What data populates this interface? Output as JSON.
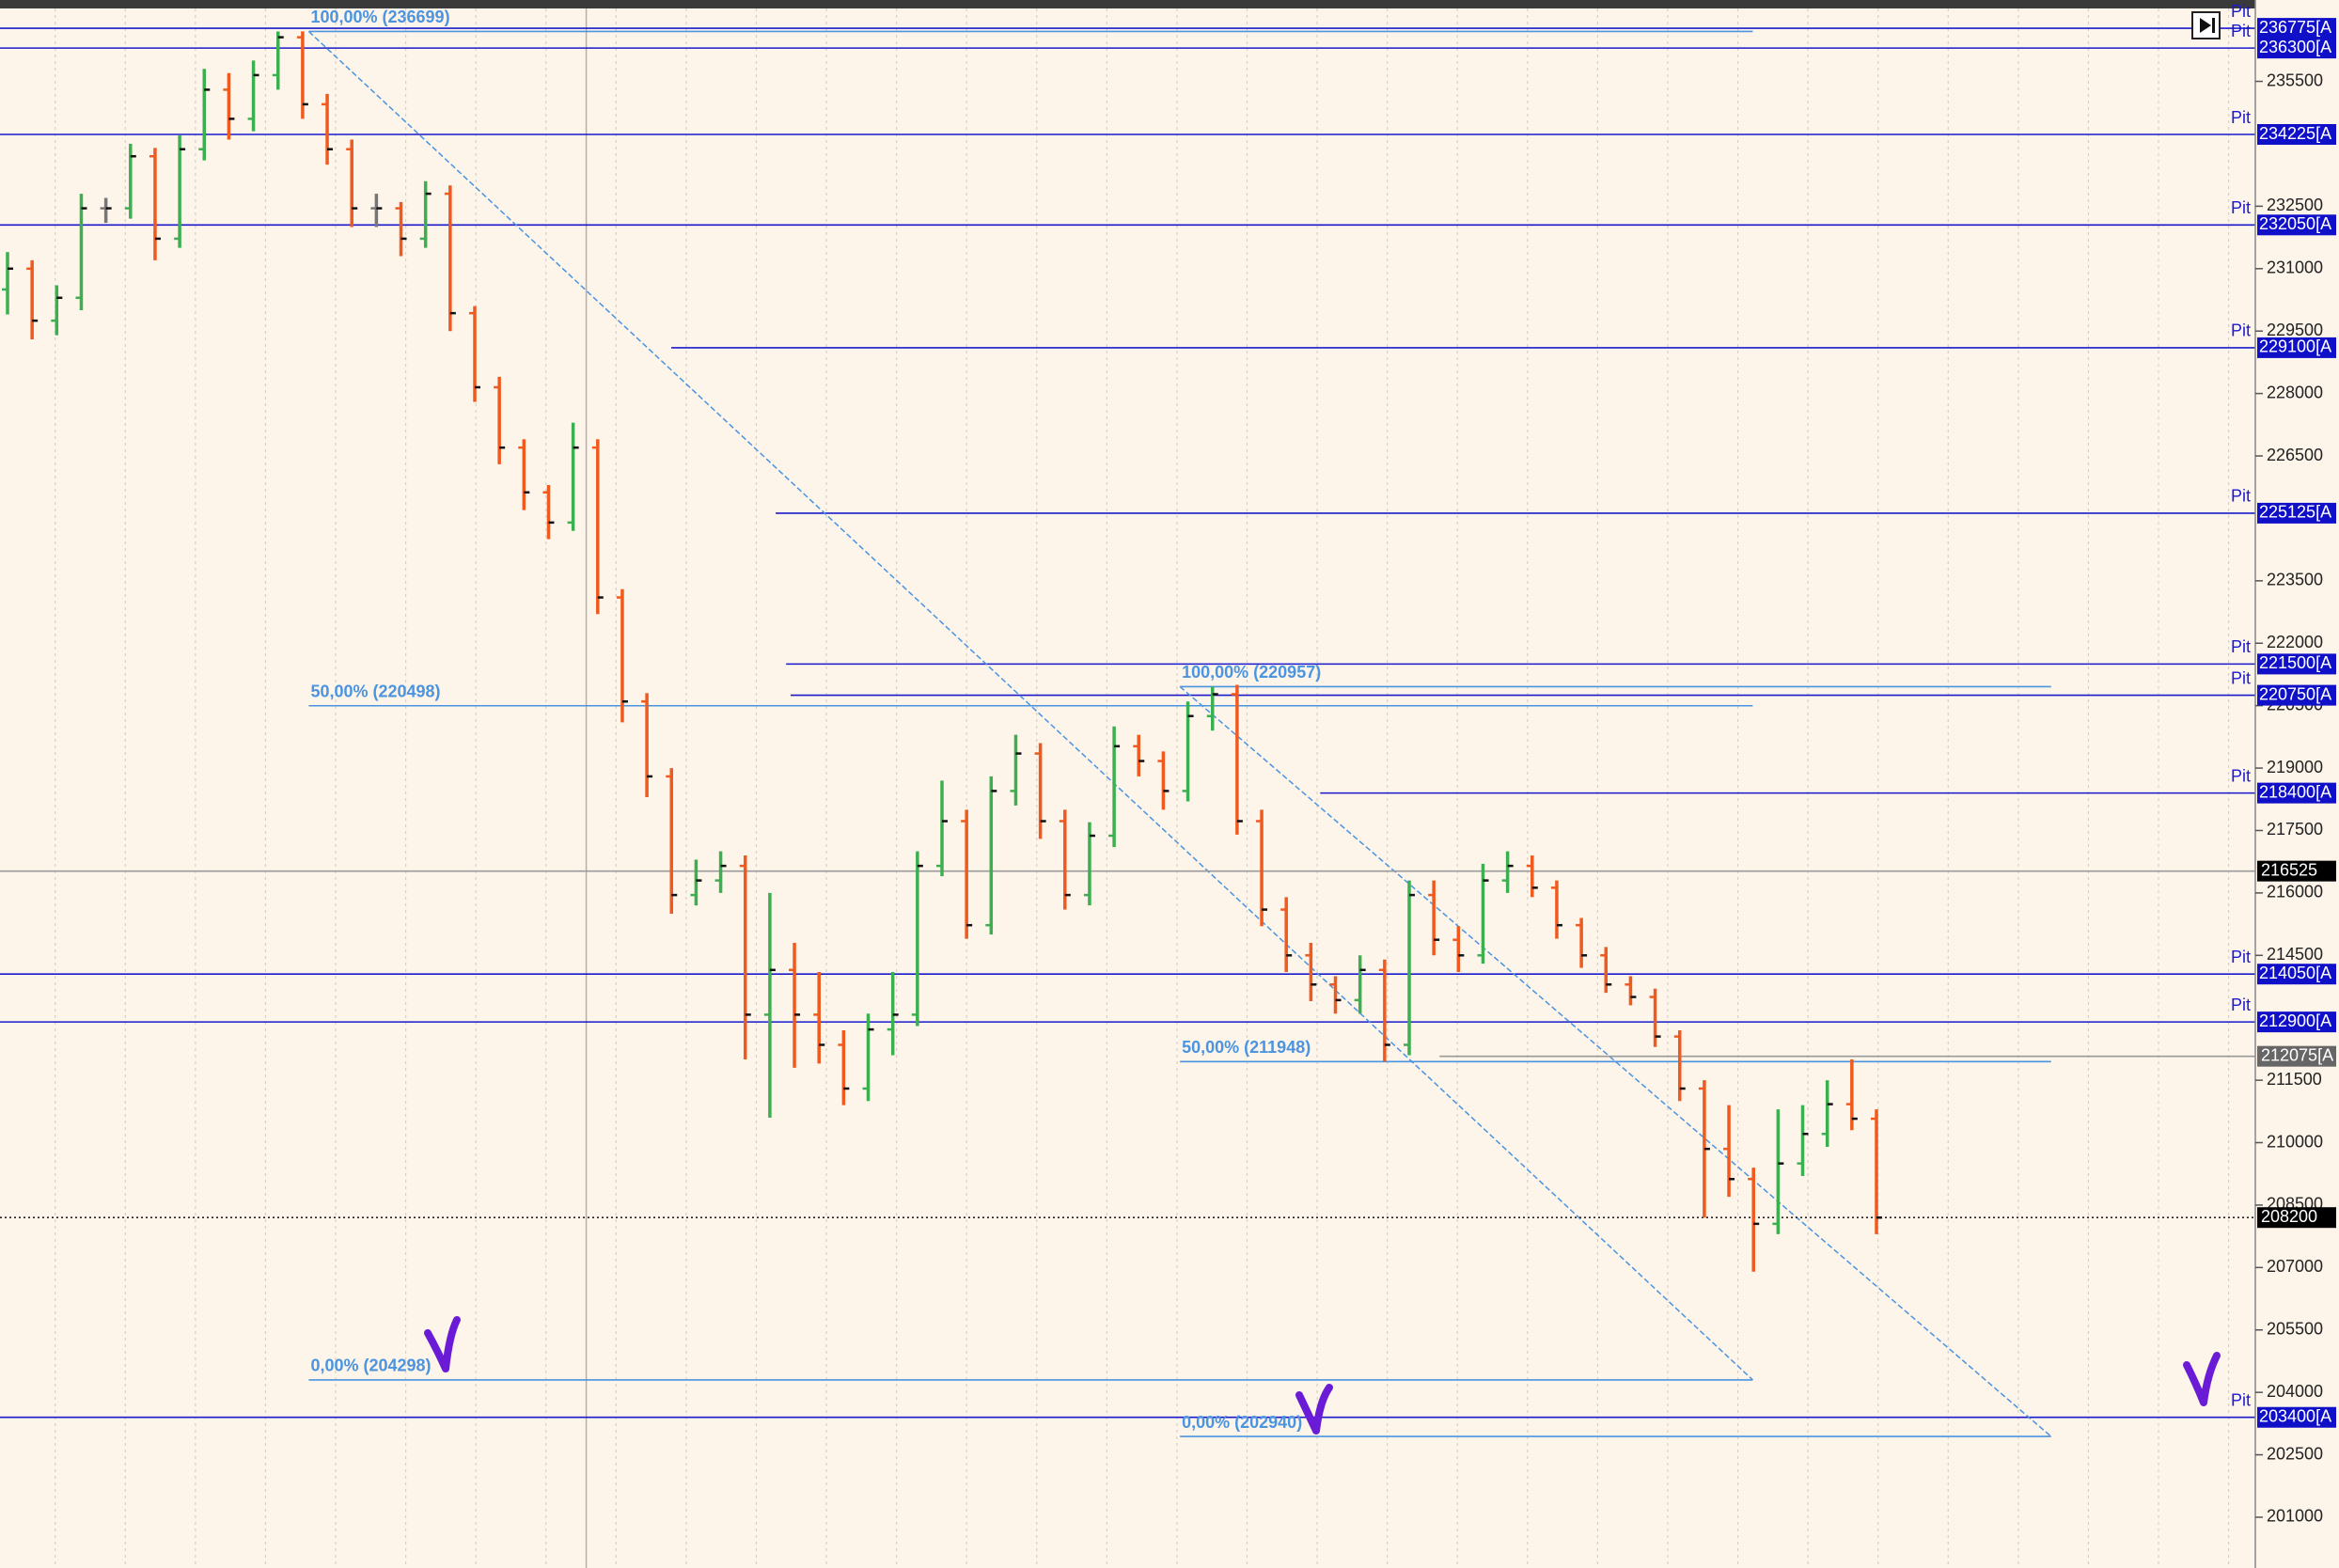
{
  "chart_data": {
    "type": "ohlc",
    "ylim": [
      199780,
      237455
    ],
    "yticks": [
      201000,
      202500,
      204000,
      205500,
      207000,
      208500,
      210000,
      211500,
      214500,
      216000,
      217500,
      219000,
      220500,
      222000,
      223500,
      226500,
      228000,
      229500,
      231000,
      232500,
      235500
    ],
    "up_color": "#3cb050",
    "down_color": "#f05a1e",
    "ohlc": [
      [
        230500,
        231400,
        229900,
        231000
      ],
      [
        231000,
        231200,
        229300,
        229750
      ],
      [
        229750,
        230600,
        229400,
        230300
      ],
      [
        230300,
        232800,
        230000,
        232450
      ],
      [
        232450,
        232700,
        232100,
        232450
      ],
      [
        232450,
        234000,
        232200,
        233700
      ],
      [
        233700,
        233900,
        231200,
        231720
      ],
      [
        231720,
        234200,
        231500,
        233870
      ],
      [
        233870,
        235800,
        233600,
        235300
      ],
      [
        235300,
        235700,
        234100,
        234600
      ],
      [
        234600,
        236000,
        234300,
        235650
      ],
      [
        235650,
        236699,
        235300,
        236560
      ],
      [
        236560,
        236700,
        234600,
        234950
      ],
      [
        234950,
        235200,
        233500,
        233870
      ],
      [
        233870,
        234100,
        232000,
        232450
      ],
      [
        232450,
        232800,
        232000,
        232450
      ],
      [
        232450,
        232600,
        231300,
        231720
      ],
      [
        231720,
        233100,
        231500,
        232800
      ],
      [
        232800,
        233000,
        229500,
        229930
      ],
      [
        229930,
        230100,
        227800,
        228150
      ],
      [
        228150,
        228400,
        226300,
        226700
      ],
      [
        226700,
        226900,
        225200,
        225625
      ],
      [
        225625,
        225800,
        224500,
        224900
      ],
      [
        224900,
        227300,
        224700,
        226700
      ],
      [
        226700,
        226900,
        222700,
        223100
      ],
      [
        223100,
        223300,
        220100,
        220600
      ],
      [
        220600,
        220800,
        218300,
        218800
      ],
      [
        218800,
        219000,
        215500,
        215950
      ],
      [
        215950,
        216800,
        215700,
        216300
      ],
      [
        216300,
        217000,
        216000,
        216650
      ],
      [
        216650,
        216900,
        212000,
        213075
      ],
      [
        213075,
        216000,
        210600,
        214150
      ],
      [
        214150,
        214800,
        211800,
        213075
      ],
      [
        213075,
        214100,
        211900,
        212350
      ],
      [
        212350,
        212700,
        210900,
        211300
      ],
      [
        211300,
        213100,
        211000,
        212720
      ],
      [
        212720,
        214100,
        212100,
        213075
      ],
      [
        213075,
        217000,
        212800,
        216650
      ],
      [
        216650,
        218700,
        216400,
        217725
      ],
      [
        217725,
        218000,
        214900,
        215225
      ],
      [
        215225,
        218800,
        215000,
        218450
      ],
      [
        218450,
        219800,
        218100,
        219350
      ],
      [
        219350,
        219600,
        217300,
        217725
      ],
      [
        217725,
        218000,
        215600,
        215950
      ],
      [
        215950,
        217700,
        215700,
        217375
      ],
      [
        217375,
        220000,
        217100,
        219525
      ],
      [
        219525,
        219800,
        218800,
        219170
      ],
      [
        219170,
        219400,
        218000,
        218450
      ],
      [
        218450,
        220600,
        218200,
        220250
      ],
      [
        220250,
        220957,
        219900,
        220775
      ],
      [
        220775,
        221000,
        217400,
        217725
      ],
      [
        217725,
        218000,
        215200,
        215600
      ],
      [
        215600,
        215900,
        214100,
        214500
      ],
      [
        214500,
        214800,
        213400,
        213800
      ],
      [
        213800,
        214000,
        213100,
        213425
      ],
      [
        213425,
        214500,
        213100,
        214150
      ],
      [
        214150,
        214400,
        211948,
        212350
      ],
      [
        212350,
        216300,
        212100,
        215950
      ],
      [
        215950,
        216300,
        214500,
        214875
      ],
      [
        214875,
        215200,
        214100,
        214500
      ],
      [
        214500,
        216700,
        214300,
        216300
      ],
      [
        216300,
        217000,
        216000,
        216650
      ],
      [
        216650,
        216900,
        215900,
        216125
      ],
      [
        216125,
        216300,
        214900,
        215225
      ],
      [
        215225,
        215400,
        214200,
        214500
      ],
      [
        214500,
        214700,
        213600,
        213800
      ],
      [
        213800,
        214000,
        213300,
        213500
      ],
      [
        213500,
        213700,
        212300,
        212550
      ],
      [
        212550,
        212700,
        211000,
        211300
      ],
      [
        211300,
        211500,
        208200,
        209850
      ],
      [
        209850,
        210900,
        208700,
        209125
      ],
      [
        209125,
        209400,
        206900,
        208050
      ],
      [
        208050,
        210800,
        207800,
        209500
      ],
      [
        209500,
        210900,
        209200,
        210210
      ],
      [
        210210,
        211500,
        209900,
        210925
      ],
      [
        210925,
        212000,
        210300,
        210575
      ],
      [
        210575,
        210800,
        207800,
        208200
      ]
    ],
    "levels": {
      "tag": "Pit",
      "color": "#1a1acc",
      "values": [
        236775,
        236300,
        234225,
        232050,
        229100,
        225125,
        221500,
        220750,
        218400,
        214050,
        212900,
        203400
      ],
      "value_labels": [
        "236775[A",
        "236300[A",
        "234225[A",
        "232050[A",
        "229100[A",
        "225125[A",
        "221500[A",
        "220750[A",
        "218400[A",
        "214050[A",
        "212900[A",
        "203400[A"
      ]
    },
    "price_markers": {
      "values": [
        216525,
        208200,
        212075
      ],
      "value_labels": [
        "216525",
        "208200",
        "212075[A"
      ]
    },
    "fibonacci": [
      {
        "color": "#4a94e0",
        "values": [
          236699,
          220498,
          204298
        ],
        "value_labels": [
          "100,00% (236699)",
          "50,00% (220498)",
          "0,00% (204298)"
        ]
      },
      {
        "color": "#4a94e0",
        "values": [
          220957,
          211948,
          202940
        ],
        "value_labels": [
          "100,00% (220957)",
          "50,00% (211948)",
          "0,00% (202940)"
        ]
      }
    ]
  }
}
